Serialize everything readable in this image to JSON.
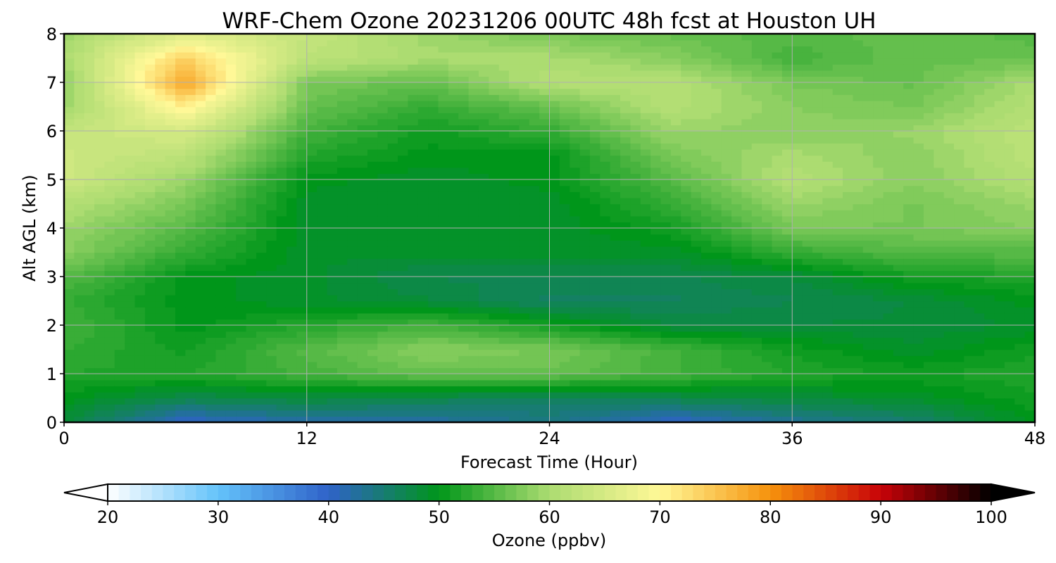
{
  "chart_data": {
    "type": "heatmap",
    "title": "WRF-Chem Ozone  20231206 00UTC 48h fcst at Houston UH",
    "xlabel": "Forecast Time (Hour)",
    "ylabel": "Alt AGL (km)",
    "xlim": [
      0,
      48
    ],
    "ylim": [
      0,
      8
    ],
    "xticks": [
      0,
      12,
      24,
      36,
      48
    ],
    "yticks": [
      0,
      1,
      2,
      3,
      4,
      5,
      6,
      7,
      8
    ],
    "grid": true,
    "x": [
      0,
      6,
      12,
      18,
      24,
      30,
      36,
      42,
      48
    ],
    "y": [
      0,
      0.5,
      1,
      1.5,
      2,
      2.5,
      3,
      3.5,
      4,
      4.5,
      5,
      5.5,
      6,
      6.5,
      7,
      7.5,
      8
    ],
    "z": [
      [
        48,
        40,
        42,
        42,
        44,
        40,
        43,
        45,
        50
      ],
      [
        50,
        47,
        48,
        47,
        46,
        47,
        48,
        49,
        51
      ],
      [
        52,
        52,
        54,
        56,
        56,
        54,
        52,
        51,
        52
      ],
      [
        53,
        51,
        55,
        58,
        57,
        54,
        51,
        49,
        51
      ],
      [
        54,
        50,
        52,
        54,
        51,
        48,
        48,
        48,
        49
      ],
      [
        53,
        50,
        49,
        48,
        46,
        46,
        47,
        48,
        50
      ],
      [
        55,
        50,
        49,
        47,
        47,
        47,
        48,
        51,
        52
      ],
      [
        58,
        53,
        49,
        49,
        49,
        49,
        53,
        55,
        55
      ],
      [
        59,
        55,
        49,
        49,
        49,
        51,
        57,
        57,
        58
      ],
      [
        61,
        57,
        49,
        49,
        49,
        53,
        59,
        57,
        59
      ],
      [
        64,
        59,
        50,
        49,
        50,
        55,
        61,
        58,
        61
      ],
      [
        64,
        62,
        52,
        50,
        50,
        57,
        60,
        58,
        62
      ],
      [
        63,
        65,
        54,
        51,
        53,
        59,
        58,
        59,
        62
      ],
      [
        59,
        71,
        56,
        53,
        56,
        61,
        58,
        57,
        61
      ],
      [
        58,
        78,
        57,
        56,
        61,
        61,
        57,
        56,
        60
      ],
      [
        60,
        74,
        62,
        60,
        60,
        58,
        54,
        56,
        56
      ],
      [
        59,
        66,
        63,
        59,
        57,
        56,
        55,
        56,
        55
      ]
    ],
    "colorbar": {
      "label": "Ozone  (ppbv)",
      "min": 20,
      "max": 100,
      "extend": "both",
      "ticks": [
        20,
        30,
        40,
        50,
        60,
        70,
        80,
        90,
        100
      ],
      "colors": [
        "#ffffff",
        "#64c3fa",
        "#2f62c9",
        "#00961a",
        "#acdc71",
        "#fff897",
        "#f6920c",
        "#c80208",
        "#000000"
      ]
    }
  }
}
